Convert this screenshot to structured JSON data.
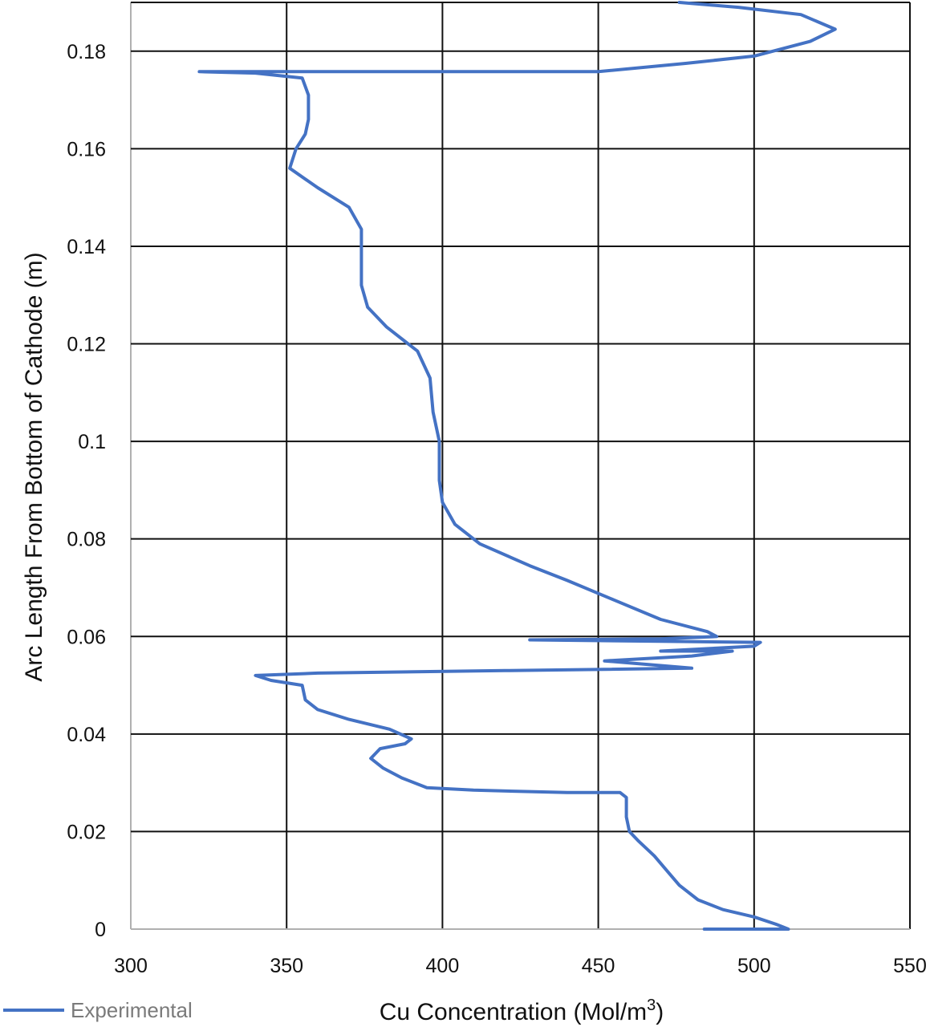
{
  "chart_data": {
    "type": "line",
    "title": "",
    "xlabel": "Cu Concentration (Mol/m³)",
    "xlabel_main": "Cu Concentration (Mol/m",
    "xlabel_sup": "3",
    "xlabel_end": ")",
    "ylabel": "Arc Length  From Bottom of Cathode (m)",
    "xlim": [
      300,
      550
    ],
    "ylim": [
      0,
      0.19
    ],
    "xticks": [
      300,
      350,
      400,
      450,
      500,
      550
    ],
    "xtick_labels": [
      "300",
      "350",
      "400",
      "450",
      "500",
      "550"
    ],
    "yticks": [
      0,
      0.02,
      0.04,
      0.06,
      0.08,
      0.1,
      0.12,
      0.14,
      0.16,
      0.18
    ],
    "ytick_labels": [
      "0",
      "0.02",
      "0.04",
      "0.06",
      "0.08",
      "0.1",
      "0.12",
      "0.14",
      "0.16",
      "0.18"
    ],
    "grid": true,
    "legend_position": "bottom-left",
    "series": [
      {
        "name": "Experimental",
        "color": "#4472c4",
        "points": [
          [
            484,
            0.0
          ],
          [
            511,
            0.0
          ],
          [
            507,
            0.001
          ],
          [
            500,
            0.0025
          ],
          [
            490,
            0.004
          ],
          [
            482,
            0.006
          ],
          [
            476,
            0.009
          ],
          [
            472,
            0.012
          ],
          [
            468,
            0.015
          ],
          [
            463,
            0.018
          ],
          [
            460,
            0.02
          ],
          [
            459,
            0.023
          ],
          [
            459,
            0.027
          ],
          [
            457,
            0.028
          ],
          [
            440,
            0.028
          ],
          [
            410,
            0.0285
          ],
          [
            395,
            0.029
          ],
          [
            387,
            0.031
          ],
          [
            381,
            0.033
          ],
          [
            377,
            0.035
          ],
          [
            380,
            0.037
          ],
          [
            388,
            0.038
          ],
          [
            390,
            0.039
          ],
          [
            383,
            0.041
          ],
          [
            370,
            0.043
          ],
          [
            360,
            0.045
          ],
          [
            356,
            0.047
          ],
          [
            355,
            0.05
          ],
          [
            345,
            0.051
          ],
          [
            340,
            0.052
          ],
          [
            360,
            0.0525
          ],
          [
            420,
            0.053
          ],
          [
            480,
            0.0535
          ],
          [
            452,
            0.055
          ],
          [
            480,
            0.056
          ],
          [
            493,
            0.057
          ],
          [
            470,
            0.057
          ],
          [
            500,
            0.058
          ],
          [
            502,
            0.0588
          ],
          [
            470,
            0.059
          ],
          [
            428,
            0.0593
          ],
          [
            470,
            0.0595
          ],
          [
            488,
            0.06
          ],
          [
            485,
            0.061
          ],
          [
            470,
            0.0635
          ],
          [
            455,
            0.0675
          ],
          [
            440,
            0.0715
          ],
          [
            428,
            0.0745
          ],
          [
            412,
            0.079
          ],
          [
            404,
            0.083
          ],
          [
            400,
            0.0875
          ],
          [
            399,
            0.092
          ],
          [
            399,
            0.1
          ],
          [
            397,
            0.106
          ],
          [
            396,
            0.113
          ],
          [
            392,
            0.1185
          ],
          [
            382,
            0.1235
          ],
          [
            376,
            0.1275
          ],
          [
            374,
            0.132
          ],
          [
            374,
            0.1435
          ],
          [
            370,
            0.148
          ],
          [
            360,
            0.152
          ],
          [
            351,
            0.156
          ],
          [
            353,
            0.16
          ],
          [
            356,
            0.163
          ],
          [
            357,
            0.166
          ],
          [
            357,
            0.171
          ],
          [
            355,
            0.1745
          ],
          [
            340,
            0.1755
          ],
          [
            322,
            0.1758
          ],
          [
            400,
            0.1758
          ],
          [
            450,
            0.1758
          ],
          [
            478,
            0.1775
          ],
          [
            500,
            0.179
          ],
          [
            518,
            0.182
          ],
          [
            526,
            0.1845
          ],
          [
            515,
            0.1875
          ],
          [
            495,
            0.189
          ],
          [
            476,
            0.19
          ]
        ]
      }
    ]
  }
}
